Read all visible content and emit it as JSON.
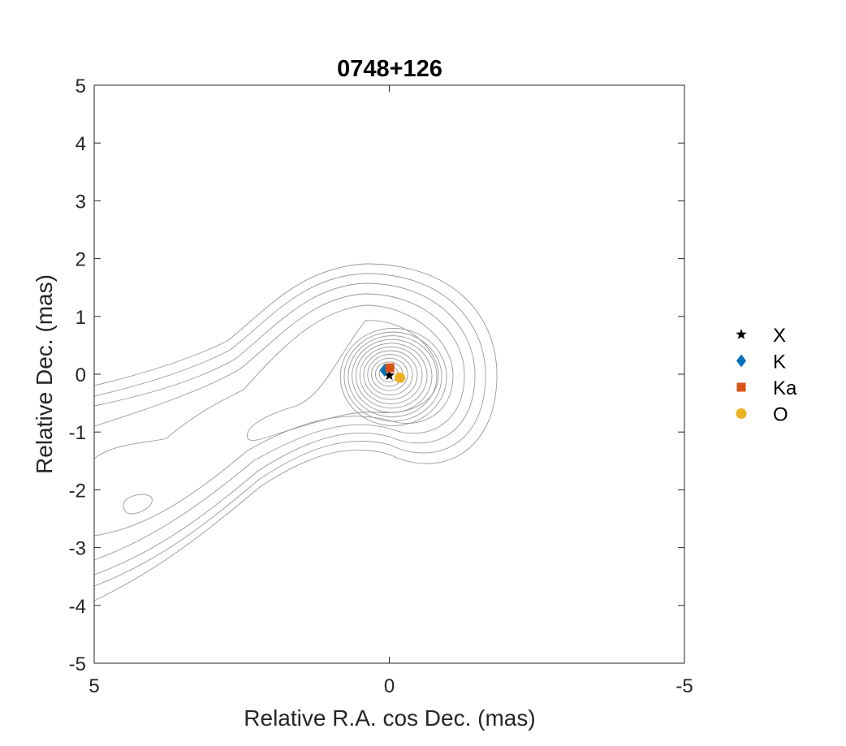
{
  "chart_data": {
    "type": "scatter",
    "title": "0748+126",
    "xlabel": "Relative R.A. cos Dec. (mas)",
    "ylabel": "Relative Dec. (mas)",
    "xlim": [
      5,
      -5
    ],
    "ylim": [
      -5,
      5
    ],
    "x_reversed": true,
    "xticks": [
      5,
      0,
      -5
    ],
    "yticks": [
      5,
      4,
      3,
      2,
      1,
      0,
      -1,
      -2,
      -3,
      -4,
      -5
    ],
    "grid": false,
    "legend_position": "right",
    "background": "contour map (grey contours)",
    "series": [
      {
        "name": "X",
        "marker": "star",
        "color": "#000000",
        "x": 0.0,
        "y": -0.02
      },
      {
        "name": "K",
        "marker": "diamond",
        "color": "#0072BD",
        "x": 0.08,
        "y": 0.07
      },
      {
        "name": "Ka",
        "marker": "square",
        "color": "#D95319",
        "x": -0.01,
        "y": 0.11
      },
      {
        "name": "O",
        "marker": "circle",
        "color": "#EDB120",
        "x": -0.18,
        "y": -0.06
      }
    ]
  }
}
